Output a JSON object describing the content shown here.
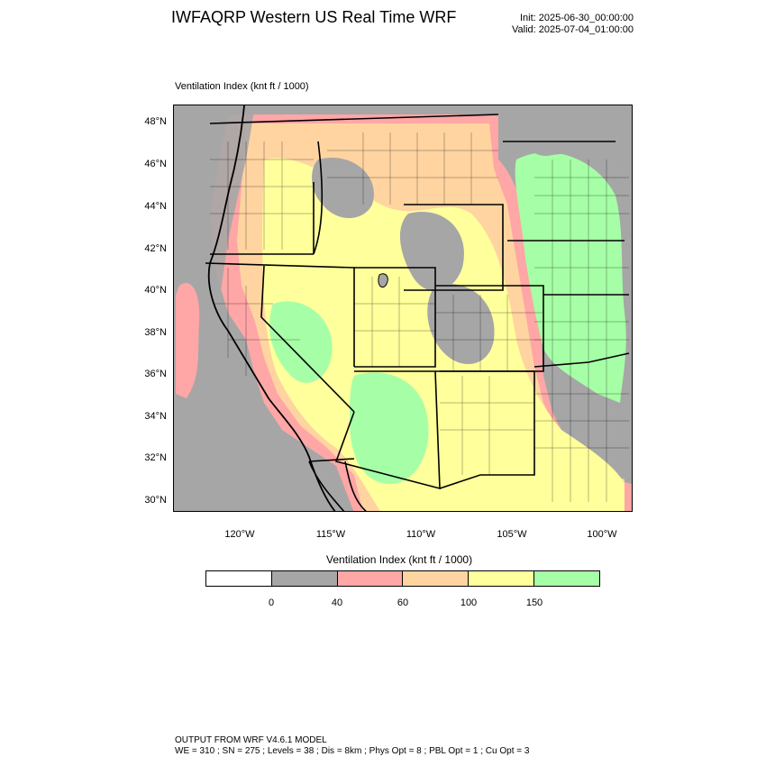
{
  "header": {
    "title": "IWFAQRP Western US Real Time WRF",
    "init": "Init: 2025-06-30_00:00:00",
    "valid": "Valid: 2025-07-04_01:00:00"
  },
  "panel_label": "Ventilation Index   (knt ft / 1000)",
  "map": {
    "lat_labels": [
      "48°N",
      "46°N",
      "44°N",
      "42°N",
      "40°N",
      "38°N",
      "36°N",
      "34°N",
      "32°N",
      "30°N"
    ],
    "lon_labels": [
      "120°W",
      "115°W",
      "110°W",
      "105°W",
      "100°W"
    ],
    "colors": {
      "ocean": "#a6a6a6",
      "band_0_40": "#a6a6a6",
      "band_40_60": "#ffa6a6",
      "band_60_100": "#ffd4a0",
      "band_100_150": "#ffff9c",
      "band_150_plus": "#a6ffa6"
    }
  },
  "colorbar": {
    "title": "Ventilation Index  (knt ft / 1000)",
    "colors": [
      "#ffffff",
      "#a6a6a6",
      "#ffa6a6",
      "#ffd4a0",
      "#ffff9c",
      "#a6ffa6"
    ],
    "ticks": [
      "0",
      "40",
      "60",
      "100",
      "150"
    ]
  },
  "footer": {
    "line1": "OUTPUT FROM WRF V4.6.1 MODEL",
    "line2": "WE = 310 ; SN = 275 ; Levels = 38 ; Dis = 8km ; Phys Opt = 8 ; PBL Opt = 1 ; Cu Opt = 3"
  }
}
